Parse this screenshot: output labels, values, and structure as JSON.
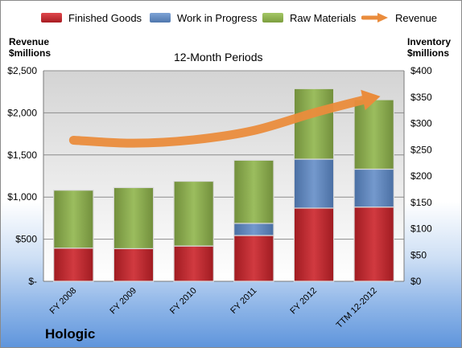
{
  "legend": {
    "finished_goods": "Finished Goods",
    "work_in_progress": "Work in Progress",
    "raw_materials": "Raw Materials",
    "revenue": "Revenue"
  },
  "left_axis_title": [
    "Revenue",
    "$millions"
  ],
  "right_axis_title": [
    "Inventory",
    "$millions"
  ],
  "period_label": "12-Month Periods",
  "company": "Hologic",
  "colors": {
    "finished_goods": "#c0242a",
    "work_in_progress": "#5a82b8",
    "raw_materials": "#88ab48",
    "revenue": "#ea8c3c"
  },
  "chart_data": {
    "type": "bar",
    "stacked": true,
    "categories": [
      "FY 2008",
      "FY 2009",
      "FY 2010",
      "FY 2011",
      "FY 2012",
      "TTM 12-2012"
    ],
    "series": [
      {
        "name": "Finished Goods",
        "axis": "right",
        "values": [
          63,
          62,
          67,
          87,
          139,
          141
        ]
      },
      {
        "name": "Work in Progress",
        "axis": "right",
        "values": [
          0,
          0,
          0,
          23,
          93,
          72
        ]
      },
      {
        "name": "Raw Materials",
        "axis": "right",
        "values": [
          110,
          116,
          123,
          120,
          134,
          132
        ]
      },
      {
        "name": "Revenue",
        "axis": "left",
        "type": "line",
        "values": [
          1675,
          1640,
          1680,
          1790,
          2000,
          2180
        ]
      }
    ],
    "left_axis": {
      "ylim": [
        0,
        2500
      ],
      "ticks": [
        "$-",
        "$500",
        "$1,000",
        "$1,500",
        "$2,000",
        "$2,500"
      ]
    },
    "right_axis": {
      "ylim": [
        0,
        400
      ],
      "ticks": [
        "$0",
        "$50",
        "$100",
        "$150",
        "$200",
        "$250",
        "$300",
        "$350",
        "$400"
      ]
    },
    "grid": true,
    "legend_position": "top"
  }
}
